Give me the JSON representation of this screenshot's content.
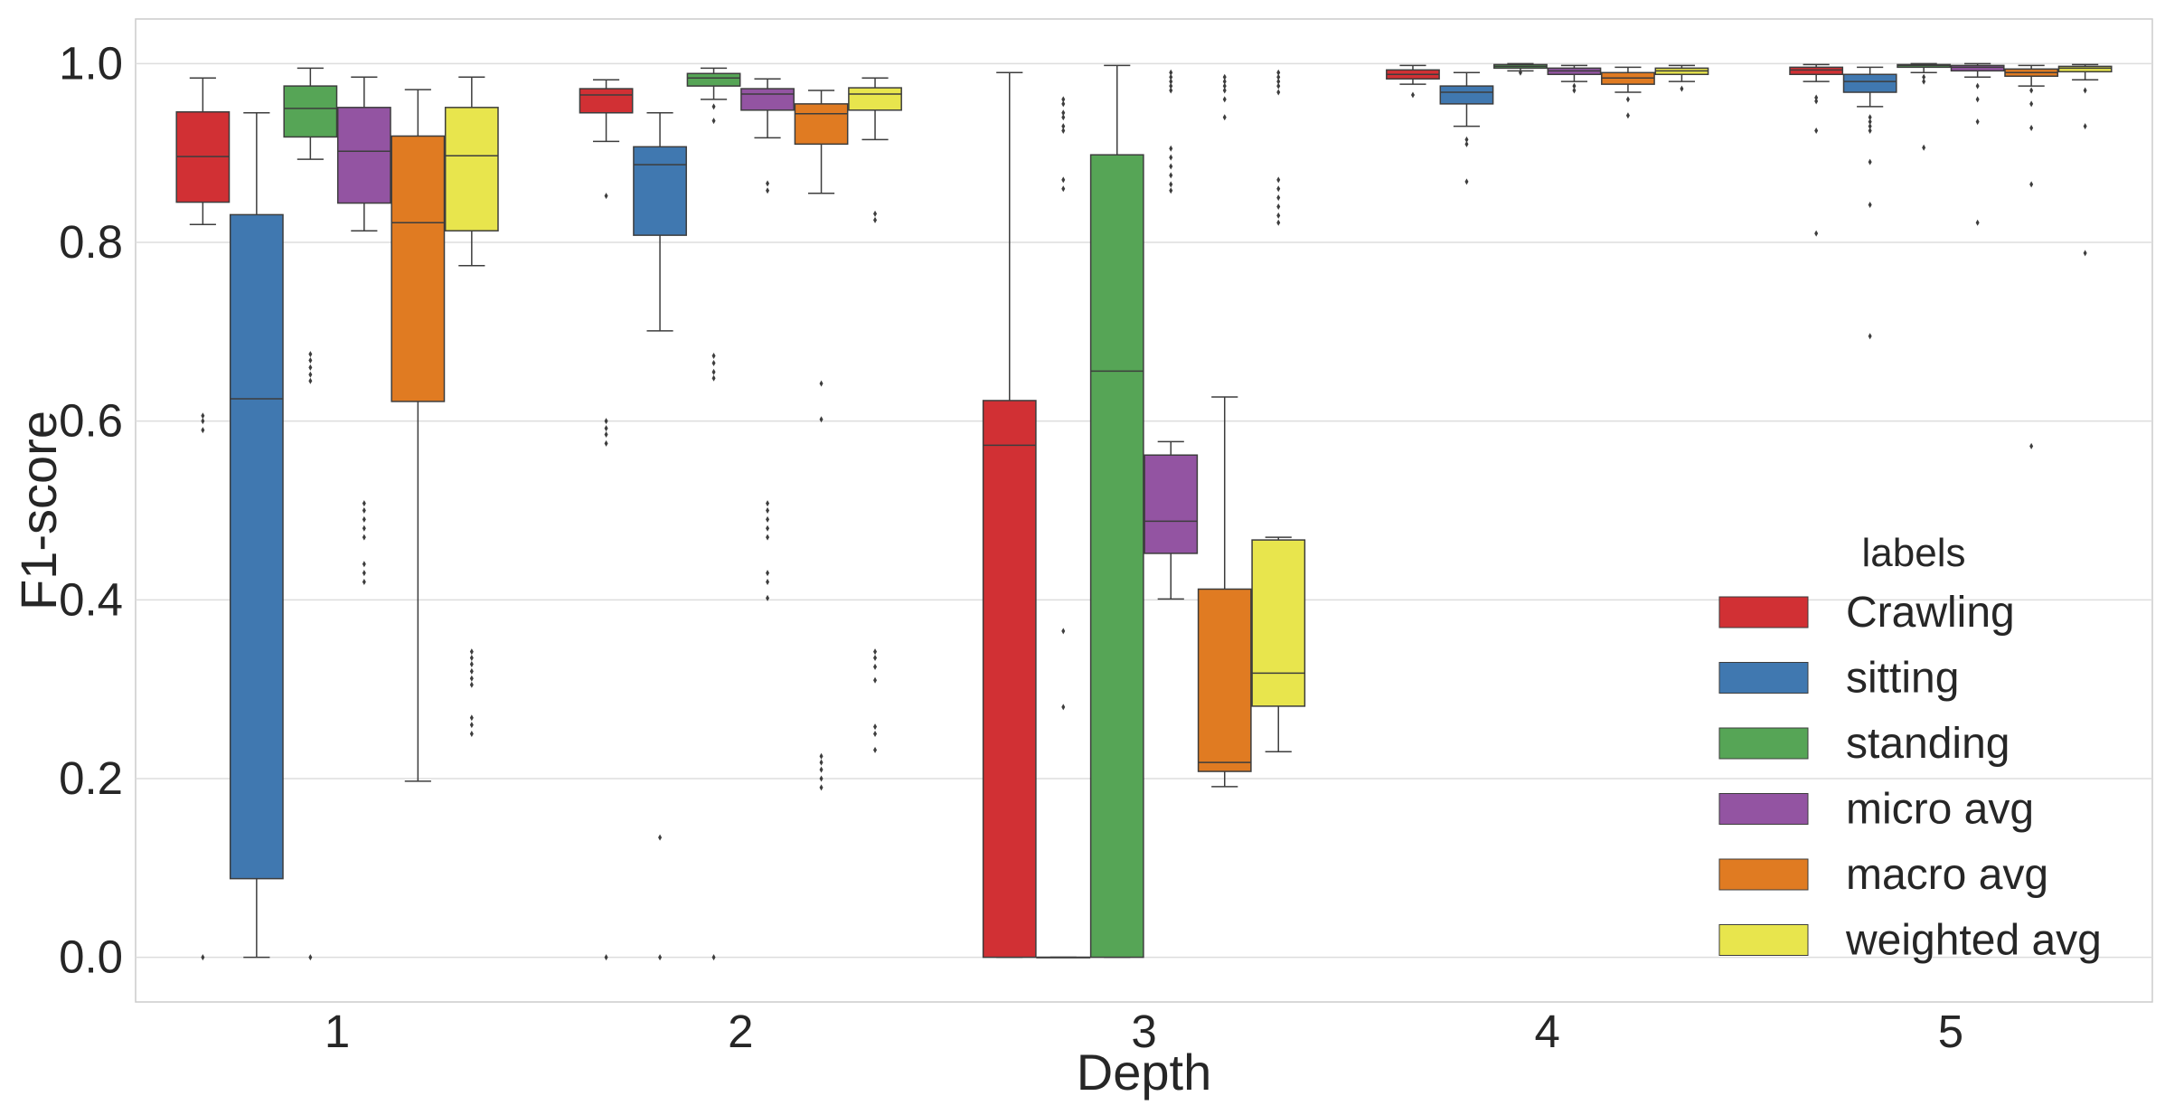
{
  "chart_data": {
    "type": "box",
    "title": "",
    "xlabel": "Depth",
    "ylabel": "F1-score",
    "ylim": [
      -0.05,
      1.05
    ],
    "yticks": [
      "0.0",
      "0.2",
      "0.4",
      "0.6",
      "0.8",
      "1.0"
    ],
    "categories": [
      "1",
      "2",
      "3",
      "4",
      "5"
    ],
    "grid": true,
    "legend": {
      "title": "labels",
      "placement": "lower-right"
    },
    "series": [
      {
        "name": "Crawling",
        "color": "#d13034",
        "boxes": [
          {
            "q1": 0.845,
            "median": 0.896,
            "q3": 0.946,
            "whislo": 0.82,
            "whishi": 0.984,
            "fliers": [
              0.59,
              0.6,
              0.606,
              0.0
            ]
          },
          {
            "q1": 0.945,
            "median": 0.965,
            "q3": 0.972,
            "whislo": 0.913,
            "whishi": 0.982,
            "fliers": [
              0.852,
              0.6,
              0.592,
              0.585,
              0.575,
              0.0
            ]
          },
          {
            "q1": 0.0,
            "median": 0.573,
            "q3": 0.623,
            "whislo": 0.0,
            "whishi": 0.99,
            "fliers": []
          },
          {
            "q1": 0.983,
            "median": 0.988,
            "q3": 0.993,
            "whislo": 0.977,
            "whishi": 0.998,
            "fliers": [
              0.965
            ]
          },
          {
            "q1": 0.988,
            "median": 0.993,
            "q3": 0.996,
            "whislo": 0.98,
            "whishi": 0.999,
            "fliers": [
              0.962,
              0.958,
              0.925,
              0.81
            ]
          }
        ]
      },
      {
        "name": "sitting",
        "color": "#4078b0",
        "boxes": [
          {
            "q1": 0.088,
            "median": 0.625,
            "q3": 0.831,
            "whislo": 0.0,
            "whishi": 0.945,
            "fliers": []
          },
          {
            "q1": 0.808,
            "median": 0.887,
            "q3": 0.907,
            "whislo": 0.701,
            "whishi": 0.945,
            "fliers": [
              0.134,
              0.0
            ]
          },
          {
            "q1": 0.0,
            "median": 0.0,
            "q3": 0.0,
            "whislo": 0.0,
            "whishi": 0.0,
            "fliers": [
              0.96,
              0.955,
              0.945,
              0.94,
              0.93,
              0.925,
              0.87,
              0.86,
              0.365,
              0.28
            ]
          },
          {
            "q1": 0.955,
            "median": 0.968,
            "q3": 0.975,
            "whislo": 0.93,
            "whishi": 0.99,
            "fliers": [
              0.915,
              0.91,
              0.868
            ]
          },
          {
            "q1": 0.968,
            "median": 0.98,
            "q3": 0.988,
            "whislo": 0.952,
            "whishi": 0.996,
            "fliers": [
              0.94,
              0.935,
              0.93,
              0.925,
              0.89,
              0.842,
              0.695
            ]
          }
        ]
      },
      {
        "name": "standing",
        "color": "#56a556",
        "boxes": [
          {
            "q1": 0.918,
            "median": 0.95,
            "q3": 0.975,
            "whislo": 0.893,
            "whishi": 0.995,
            "fliers": [
              0.675,
              0.668,
              0.66,
              0.652,
              0.645,
              0.0
            ]
          },
          {
            "q1": 0.975,
            "median": 0.984,
            "q3": 0.989,
            "whislo": 0.96,
            "whishi": 0.995,
            "fliers": [
              0.952,
              0.936,
              0.673,
              0.665,
              0.655,
              0.648,
              0.0
            ]
          },
          {
            "q1": 0.0,
            "median": 0.656,
            "q3": 0.898,
            "whislo": 0.0,
            "whishi": 0.998,
            "fliers": []
          },
          {
            "q1": 0.995,
            "median": 0.997,
            "q3": 0.999,
            "whislo": 0.992,
            "whishi": 1.0,
            "fliers": [
              0.99
            ]
          },
          {
            "q1": 0.996,
            "median": 0.998,
            "q3": 0.999,
            "whislo": 0.99,
            "whishi": 1.0,
            "fliers": [
              0.985,
              0.98,
              0.906
            ]
          }
        ]
      },
      {
        "name": "micro avg",
        "color": "#9354a2",
        "boxes": [
          {
            "q1": 0.844,
            "median": 0.902,
            "q3": 0.951,
            "whislo": 0.813,
            "whishi": 0.985,
            "fliers": [
              0.508,
              0.5,
              0.49,
              0.48,
              0.47,
              0.44,
              0.43,
              0.42
            ]
          },
          {
            "q1": 0.948,
            "median": 0.966,
            "q3": 0.972,
            "whislo": 0.917,
            "whishi": 0.983,
            "fliers": [
              0.866,
              0.858,
              0.508,
              0.5,
              0.49,
              0.48,
              0.47,
              0.43,
              0.42,
              0.402
            ]
          },
          {
            "q1": 0.452,
            "median": 0.488,
            "q3": 0.562,
            "whislo": 0.401,
            "whishi": 0.577,
            "fliers": [
              0.99,
              0.985,
              0.98,
              0.975,
              0.97,
              0.905,
              0.895,
              0.885,
              0.875,
              0.865,
              0.858
            ]
          },
          {
            "q1": 0.988,
            "median": 0.992,
            "q3": 0.995,
            "whislo": 0.98,
            "whishi": 0.998,
            "fliers": [
              0.975,
              0.97
            ]
          },
          {
            "q1": 0.992,
            "median": 0.996,
            "q3": 0.998,
            "whislo": 0.985,
            "whishi": 1.0,
            "fliers": [
              0.975,
              0.96,
              0.935,
              0.822
            ]
          }
        ]
      },
      {
        "name": "macro avg",
        "color": "#e07b22",
        "boxes": [
          {
            "q1": 0.622,
            "median": 0.822,
            "q3": 0.919,
            "whislo": 0.197,
            "whishi": 0.971,
            "fliers": []
          },
          {
            "q1": 0.91,
            "median": 0.944,
            "q3": 0.955,
            "whislo": 0.855,
            "whishi": 0.97,
            "fliers": [
              0.642,
              0.602,
              0.225,
              0.218,
              0.21,
              0.2,
              0.19
            ]
          },
          {
            "q1": 0.208,
            "median": 0.218,
            "q3": 0.412,
            "whislo": 0.191,
            "whishi": 0.627,
            "fliers": [
              0.985,
              0.98,
              0.975,
              0.97,
              0.96,
              0.94
            ]
          },
          {
            "q1": 0.977,
            "median": 0.984,
            "q3": 0.99,
            "whislo": 0.968,
            "whishi": 0.996,
            "fliers": [
              0.96,
              0.942
            ]
          },
          {
            "q1": 0.986,
            "median": 0.99,
            "q3": 0.994,
            "whislo": 0.975,
            "whishi": 0.998,
            "fliers": [
              0.97,
              0.955,
              0.928,
              0.865,
              0.572
            ]
          }
        ]
      },
      {
        "name": "weighted avg",
        "color": "#e8e54d",
        "boxes": [
          {
            "q1": 0.813,
            "median": 0.897,
            "q3": 0.951,
            "whislo": 0.774,
            "whishi": 0.985,
            "fliers": [
              0.342,
              0.335,
              0.328,
              0.32,
              0.312,
              0.305,
              0.268,
              0.26,
              0.25
            ]
          },
          {
            "q1": 0.948,
            "median": 0.966,
            "q3": 0.973,
            "whislo": 0.915,
            "whishi": 0.984,
            "fliers": [
              0.832,
              0.825,
              0.342,
              0.335,
              0.325,
              0.31,
              0.258,
              0.25,
              0.232
            ]
          },
          {
            "q1": 0.281,
            "median": 0.318,
            "q3": 0.467,
            "whislo": 0.23,
            "whishi": 0.47,
            "fliers": [
              0.99,
              0.985,
              0.98,
              0.975,
              0.968,
              0.87,
              0.86,
              0.85,
              0.84,
              0.83,
              0.822
            ]
          },
          {
            "q1": 0.988,
            "median": 0.992,
            "q3": 0.995,
            "whislo": 0.98,
            "whishi": 0.998,
            "fliers": [
              0.972
            ]
          },
          {
            "q1": 0.991,
            "median": 0.995,
            "q3": 0.997,
            "whislo": 0.982,
            "whishi": 0.999,
            "fliers": [
              0.97,
              0.93,
              0.788
            ]
          }
        ]
      }
    ]
  }
}
